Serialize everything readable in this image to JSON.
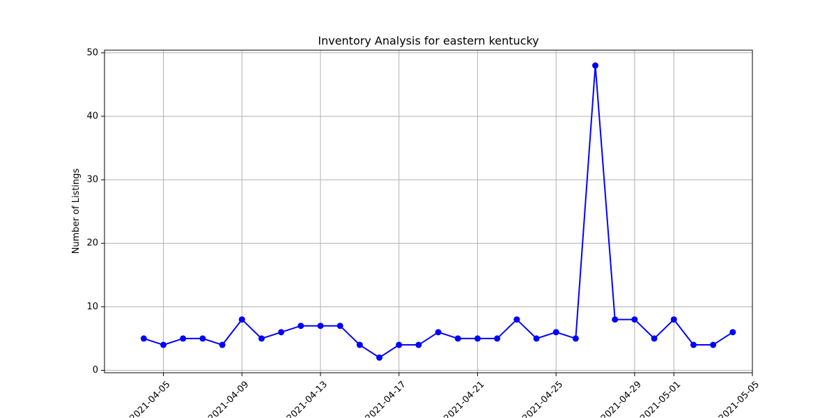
{
  "chart_data": {
    "type": "line",
    "title": "Inventory Analysis for eastern kentucky",
    "xlabel": "",
    "ylabel": "Number of Listings",
    "grid": true,
    "color": "#0000ff",
    "marker": "circle",
    "x": [
      "2021-04-04",
      "2021-04-05",
      "2021-04-06",
      "2021-04-07",
      "2021-04-08",
      "2021-04-09",
      "2021-04-10",
      "2021-04-11",
      "2021-04-12",
      "2021-04-13",
      "2021-04-14",
      "2021-04-15",
      "2021-04-16",
      "2021-04-17",
      "2021-04-18",
      "2021-04-19",
      "2021-04-20",
      "2021-04-21",
      "2021-04-22",
      "2021-04-23",
      "2021-04-24",
      "2021-04-25",
      "2021-04-26",
      "2021-04-27",
      "2021-04-28",
      "2021-04-29",
      "2021-04-30",
      "2021-05-01",
      "2021-05-02",
      "2021-05-03",
      "2021-05-04"
    ],
    "y": [
      5,
      4,
      5,
      5,
      4,
      8,
      5,
      6,
      7,
      7,
      7,
      4,
      2,
      4,
      4,
      6,
      5,
      5,
      5,
      8,
      5,
      6,
      5,
      48,
      8,
      8,
      5,
      8,
      4,
      4,
      6
    ],
    "xlim": [
      "2021-04-02",
      "2021-05-05"
    ],
    "xticks": [
      "2021-04-05",
      "2021-04-09",
      "2021-04-13",
      "2021-04-17",
      "2021-04-21",
      "2021-04-25",
      "2021-04-29",
      "2021-05-01",
      "2021-05-05"
    ],
    "ylim": [
      0,
      50
    ],
    "yticks": [
      0,
      10,
      20,
      30,
      40,
      50
    ]
  }
}
